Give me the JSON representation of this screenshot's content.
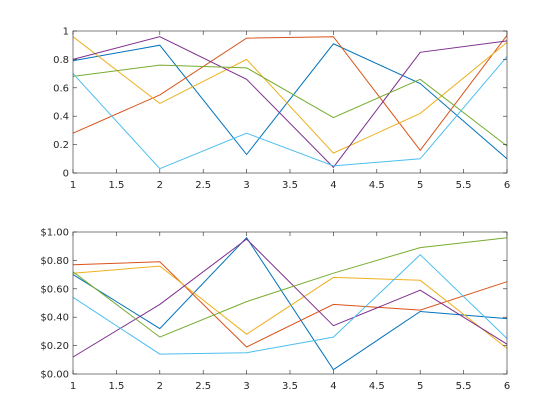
{
  "chart_data": [
    {
      "type": "line",
      "x": [
        1,
        2,
        3,
        4,
        5,
        6
      ],
      "xlim": [
        1,
        6
      ],
      "ylim": [
        0,
        1
      ],
      "grid": false,
      "xticks": [
        1,
        1.5,
        2,
        2.5,
        3,
        3.5,
        4,
        4.5,
        5,
        5.5,
        6
      ],
      "xtick_labels": [
        "1",
        "1.5",
        "2",
        "2.5",
        "3",
        "3.5",
        "4",
        "4.5",
        "5",
        "5.5",
        "6"
      ],
      "yticks": [
        0,
        0.2,
        0.4,
        0.6,
        0.8,
        1
      ],
      "ytick_labels": [
        "0",
        "0.2",
        "0.4",
        "0.6",
        "0.8",
        "1"
      ],
      "series": [
        {
          "color": "#0072BD",
          "values": [
            0.79,
            0.9,
            0.13,
            0.91,
            0.63,
            0.1
          ]
        },
        {
          "color": "#D95319",
          "values": [
            0.28,
            0.55,
            0.95,
            0.96,
            0.16,
            0.97
          ]
        },
        {
          "color": "#EDB120",
          "values": [
            0.96,
            0.49,
            0.8,
            0.14,
            0.42,
            0.92
          ]
        },
        {
          "color": "#7E2F8E",
          "values": [
            0.8,
            0.96,
            0.66,
            0.04,
            0.85,
            0.93
          ]
        },
        {
          "color": "#77AC30",
          "values": [
            0.68,
            0.76,
            0.74,
            0.39,
            0.66,
            0.19
          ]
        },
        {
          "color": "#4DBEEE",
          "values": [
            0.7,
            0.03,
            0.28,
            0.05,
            0.1,
            0.82
          ]
        }
      ]
    },
    {
      "type": "line",
      "x": [
        1,
        2,
        3,
        4,
        5,
        6
      ],
      "xlim": [
        1,
        6
      ],
      "ylim": [
        0,
        1
      ],
      "grid": false,
      "xticks": [
        1,
        1.5,
        2,
        2.5,
        3,
        3.5,
        4,
        4.5,
        5,
        5.5,
        6
      ],
      "xtick_labels": [
        "1",
        "1.5",
        "2",
        "2.5",
        "3",
        "3.5",
        "4",
        "4.5",
        "5",
        "5.5",
        "6"
      ],
      "yticks": [
        0,
        0.2,
        0.4,
        0.6,
        0.8,
        1
      ],
      "ytick_labels": [
        "$0.00",
        "$0.20",
        "$0.40",
        "$0.60",
        "$0.80",
        "$1.00"
      ],
      "series": [
        {
          "color": "#0072BD",
          "values": [
            0.7,
            0.32,
            0.96,
            0.03,
            0.44,
            0.39
          ]
        },
        {
          "color": "#D95319",
          "values": [
            0.77,
            0.79,
            0.19,
            0.49,
            0.45,
            0.65
          ]
        },
        {
          "color": "#EDB120",
          "values": [
            0.71,
            0.76,
            0.28,
            0.68,
            0.66,
            0.18
          ]
        },
        {
          "color": "#7E2F8E",
          "values": [
            0.12,
            0.49,
            0.95,
            0.34,
            0.59,
            0.21
          ]
        },
        {
          "color": "#77AC30",
          "values": [
            0.72,
            0.26,
            0.51,
            0.71,
            0.89,
            0.96
          ]
        },
        {
          "color": "#4DBEEE",
          "values": [
            0.54,
            0.14,
            0.15,
            0.26,
            0.84,
            0.25
          ]
        }
      ]
    }
  ]
}
